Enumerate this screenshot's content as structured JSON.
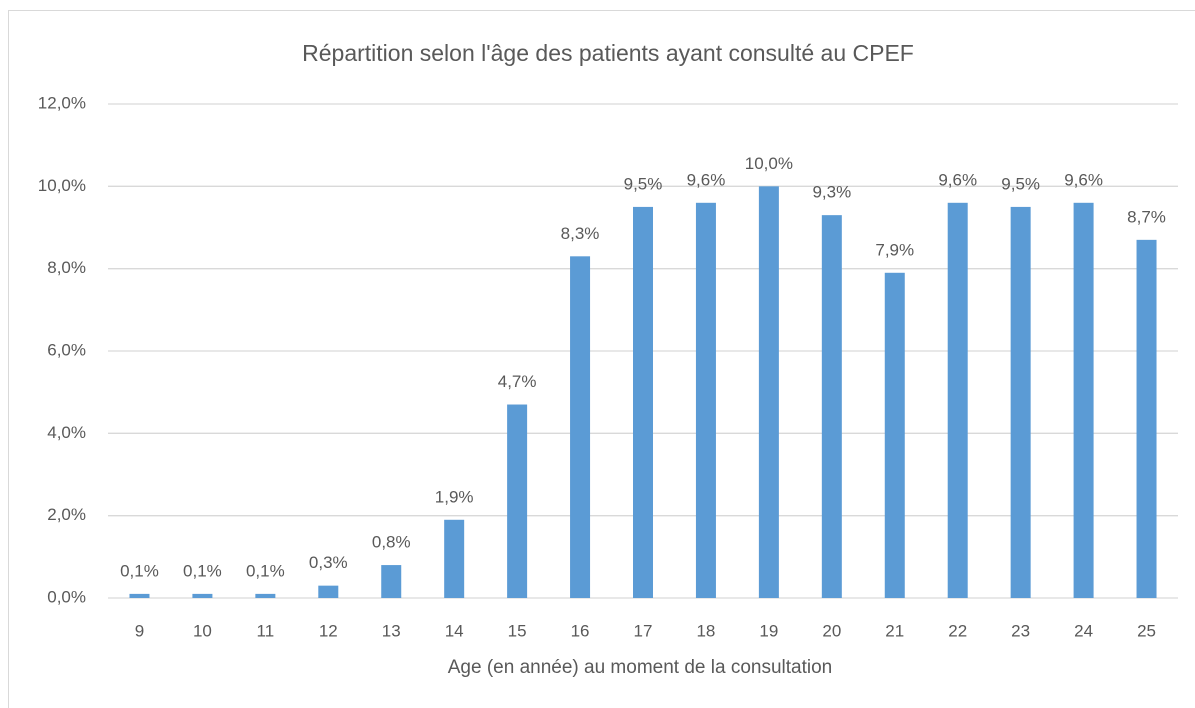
{
  "chart_data": {
    "type": "bar",
    "title": "Répartition selon l'âge des patients ayant consulté au CPEF",
    "x_label": "Age (en année) au moment de la consultation",
    "categories": [
      "9",
      "10",
      "11",
      "12",
      "13",
      "14",
      "15",
      "16",
      "17",
      "18",
      "19",
      "20",
      "21",
      "22",
      "23",
      "24",
      "25"
    ],
    "values": [
      0.1,
      0.1,
      0.1,
      0.3,
      0.8,
      1.9,
      4.7,
      8.3,
      9.5,
      9.6,
      10.0,
      9.3,
      7.9,
      9.6,
      9.5,
      9.6,
      8.7
    ],
    "value_labels": [
      "0,1%",
      "0,1%",
      "0,1%",
      "0,3%",
      "0,8%",
      "1,9%",
      "4,7%",
      "8,3%",
      "9,5%",
      "9,6%",
      "10,0%",
      "9,3%",
      "7,9%",
      "9,6%",
      "9,5%",
      "9,6%",
      "8,7%"
    ],
    "color": "#5b9bd5",
    "ylim": [
      0,
      12
    ],
    "yticks": [
      {
        "value": 0,
        "label": "0,0%"
      },
      {
        "value": 2,
        "label": "2,0%"
      },
      {
        "value": 4,
        "label": "4,0%"
      },
      {
        "value": 6,
        "label": "6,0%"
      },
      {
        "value": 8,
        "label": "8,0%"
      },
      {
        "value": 10,
        "label": "10,0%"
      },
      {
        "value": 12,
        "label": "12,0%"
      }
    ],
    "grid": true
  }
}
